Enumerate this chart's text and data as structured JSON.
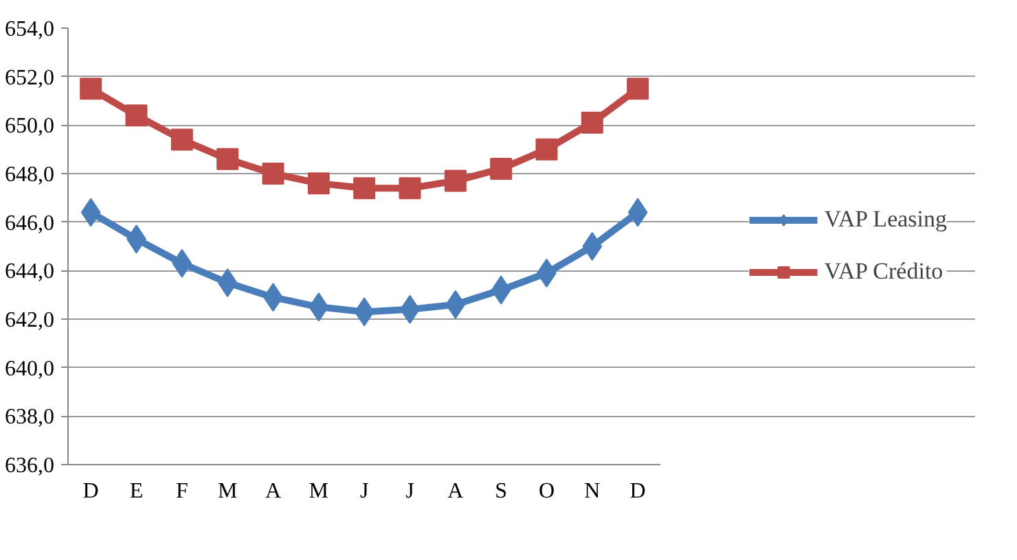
{
  "chart_data": {
    "type": "line",
    "categories": [
      "D",
      "E",
      "F",
      "M",
      "A",
      "M",
      "J",
      "J",
      "A",
      "S",
      "O",
      "N",
      "D"
    ],
    "series": [
      {
        "name": "VAP Leasing",
        "color": "#4a7ebb",
        "marker": "diamond",
        "values": [
          646.4,
          645.3,
          644.3,
          643.5,
          642.9,
          642.5,
          642.3,
          642.4,
          642.6,
          643.2,
          643.9,
          645.0,
          646.4
        ]
      },
      {
        "name": "VAP Crédito",
        "color": "#be4b48",
        "marker": "square",
        "values": [
          651.5,
          650.4,
          649.4,
          648.6,
          648.0,
          647.6,
          647.4,
          647.4,
          647.7,
          648.2,
          649.0,
          650.1,
          651.5
        ]
      }
    ],
    "ylim": [
      636,
      654
    ],
    "yticks": [
      {
        "value": 636,
        "label": "636,0"
      },
      {
        "value": 638,
        "label": "638,0"
      },
      {
        "value": 640,
        "label": "640,0"
      },
      {
        "value": 642,
        "label": "642,0"
      },
      {
        "value": 644,
        "label": "644,0"
      },
      {
        "value": 646,
        "label": "646,0"
      },
      {
        "value": 648,
        "label": "648,0"
      },
      {
        "value": 650,
        "label": "650,0"
      },
      {
        "value": 652,
        "label": "652,0"
      },
      {
        "value": 654,
        "label": "654,0"
      }
    ],
    "grid": "y",
    "legend": "right",
    "line_style": "solid"
  }
}
